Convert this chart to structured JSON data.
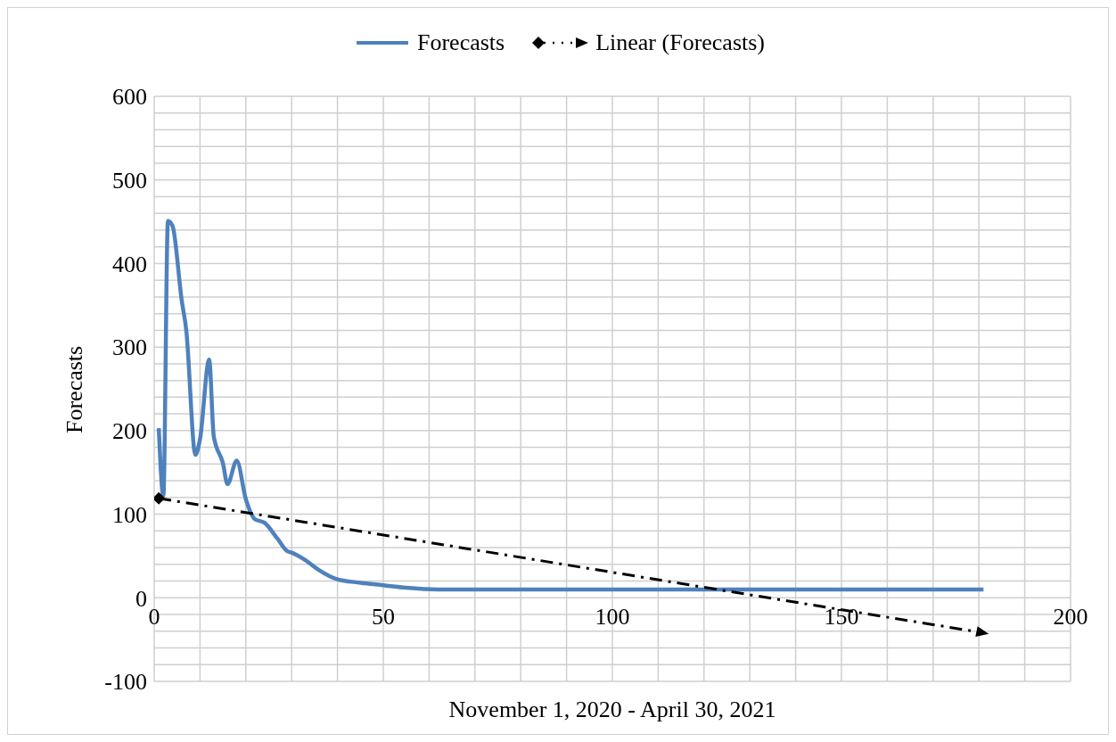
{
  "chart_data": {
    "type": "line",
    "xlabel": "November 1, 2020 - April 30, 2021",
    "ylabel": "Forecasts",
    "legend": "top",
    "grid": true,
    "xlim": [
      0,
      200
    ],
    "xticks": [
      0,
      {
        "value": 10,
        "label": null
      },
      {
        "value": 20,
        "label": null
      },
      {
        "value": 30,
        "label": null
      },
      {
        "value": 40,
        "label": null
      },
      50,
      {
        "value": 60,
        "label": null
      },
      {
        "value": 70,
        "label": null
      },
      {
        "value": 80,
        "label": null
      },
      {
        "value": 90,
        "label": null
      },
      100,
      {
        "value": 110,
        "label": null
      },
      {
        "value": 120,
        "label": null
      },
      {
        "value": 130,
        "label": null
      },
      {
        "value": 140,
        "label": null
      },
      150,
      {
        "value": 160,
        "label": null
      },
      {
        "value": 170,
        "label": null
      },
      {
        "value": 180,
        "label": null
      },
      {
        "value": 190,
        "label": null
      },
      200
    ],
    "ylim": [
      -100,
      600
    ],
    "yticks": [
      -100,
      {
        "value": -80,
        "label": null
      },
      {
        "value": -60,
        "label": null
      },
      {
        "value": -40,
        "label": null
      },
      {
        "value": -20,
        "label": null
      },
      0,
      {
        "value": 20,
        "label": null
      },
      {
        "value": 40,
        "label": null
      },
      {
        "value": 60,
        "label": null
      },
      {
        "value": 80,
        "label": null
      },
      100,
      {
        "value": 120,
        "label": null
      },
      {
        "value": 140,
        "label": null
      },
      {
        "value": 160,
        "label": null
      },
      {
        "value": 180,
        "label": null
      },
      200,
      {
        "value": 220,
        "label": null
      },
      {
        "value": 240,
        "label": null
      },
      {
        "value": 260,
        "label": null
      },
      {
        "value": 280,
        "label": null
      },
      300,
      {
        "value": 320,
        "label": null
      },
      {
        "value": 340,
        "label": null
      },
      {
        "value": 360,
        "label": null
      },
      {
        "value": 380,
        "label": null
      },
      400,
      {
        "value": 420,
        "label": null
      },
      {
        "value": 440,
        "label": null
      },
      {
        "value": 460,
        "label": null
      },
      {
        "value": 480,
        "label": null
      },
      500,
      {
        "value": 520,
        "label": null
      },
      {
        "value": 540,
        "label": null
      },
      {
        "value": 560,
        "label": null
      },
      {
        "value": 580,
        "label": null
      },
      600
    ],
    "series": [
      {
        "name": "Forecasts",
        "color": "#4f81bd",
        "marker": "none",
        "line_style": "solid",
        "x": [
          1,
          2,
          3,
          4,
          6,
          7,
          9,
          10,
          12,
          13,
          15,
          16,
          18,
          20,
          22,
          24,
          27,
          29,
          30,
          33,
          36,
          40,
          45,
          50,
          55,
          62,
          70,
          80,
          100,
          120,
          140,
          160,
          181
        ],
        "values": [
          203,
          122,
          451,
          445,
          356,
          320,
          171,
          190,
          285,
          193,
          161,
          136,
          164,
          118,
          94,
          90,
          70,
          56,
          54,
          45,
          33,
          22,
          18,
          15,
          12,
          10,
          10,
          10,
          10,
          10,
          10,
          10,
          10
        ]
      },
      {
        "name": "Linear (Forecasts)",
        "color": "#000000",
        "marker": "diamond",
        "line_style": "dashed",
        "x": [
          1,
          181
        ],
        "values": [
          119,
          -42
        ]
      }
    ]
  }
}
